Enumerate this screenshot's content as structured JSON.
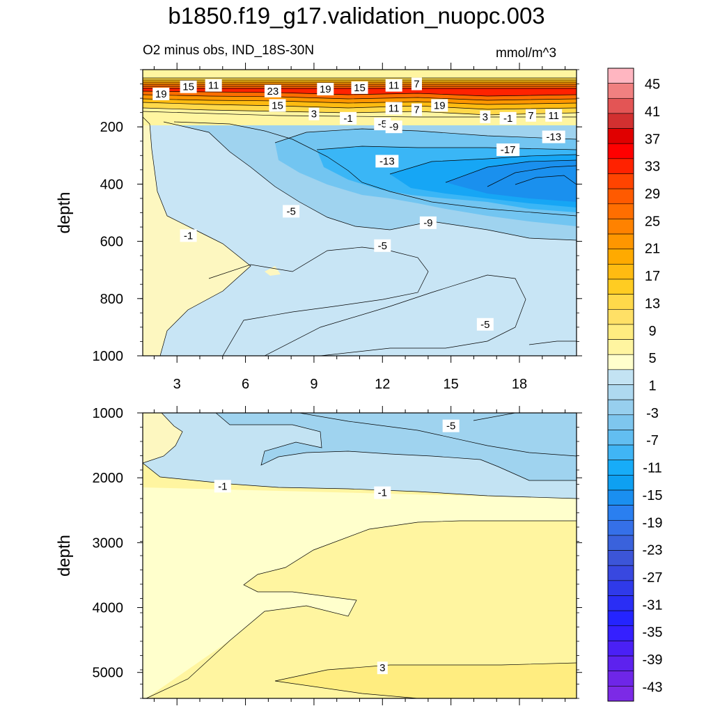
{
  "title": "b1850.f19_g17.validation_nuopc.003",
  "subtitle": "O2 minus obs, IND_18S-30N",
  "units": "mmol/m^3",
  "chart_data": [
    {
      "type": "heatmap",
      "panel": "upper",
      "ylabel": "depth",
      "xlabel": "",
      "xlim": [
        1.5,
        20.5
      ],
      "ylim": [
        1000,
        0
      ],
      "x_ticks": [
        "3",
        "6",
        "9",
        "12",
        "15",
        "18"
      ],
      "y_ticks": [
        "200",
        "400",
        "600",
        "800",
        "1000"
      ],
      "bands": [
        {
          "depth_range": [
            0,
            40
          ],
          "value": 5
        },
        {
          "depth_range": [
            40,
            130
          ],
          "value": 21
        },
        {
          "depth_range": [
            130,
            170
          ],
          "value": 9
        },
        {
          "depth_range": [
            170,
            1000
          ],
          "value": -3
        },
        {
          "x_range": [
            7,
            20.5
          ],
          "depth_range": [
            200,
            500
          ],
          "value": -7
        },
        {
          "x_range": [
            10,
            20.5
          ],
          "depth_range": [
            240,
            460
          ],
          "value": -11
        },
        {
          "x_range": [
            13,
            20.5
          ],
          "depth_range": [
            280,
            440
          ],
          "value": -15
        },
        {
          "x_range": [
            16,
            20.5
          ],
          "depth_range": [
            320,
            420
          ],
          "value": -19
        }
      ],
      "contour_labels": [
        {
          "x": 3.5,
          "depth": 60,
          "value": "15"
        },
        {
          "x": 4.6,
          "depth": 55,
          "value": "11"
        },
        {
          "x": 2.3,
          "depth": 85,
          "value": "19"
        },
        {
          "x": 7.2,
          "depth": 75,
          "value": "23"
        },
        {
          "x": 9.5,
          "depth": 68,
          "value": "19"
        },
        {
          "x": 11.0,
          "depth": 63,
          "value": "15"
        },
        {
          "x": 12.5,
          "depth": 55,
          "value": "11"
        },
        {
          "x": 13.5,
          "depth": 50,
          "value": "7"
        },
        {
          "x": 7.4,
          "depth": 125,
          "value": "15"
        },
        {
          "x": 12.5,
          "depth": 135,
          "value": "11"
        },
        {
          "x": 13.5,
          "depth": 140,
          "value": "7"
        },
        {
          "x": 14.5,
          "depth": 125,
          "value": "19"
        },
        {
          "x": 9.0,
          "depth": 155,
          "value": "3"
        },
        {
          "x": 10.5,
          "depth": 170,
          "value": "-1"
        },
        {
          "x": 12.0,
          "depth": 190,
          "value": "-5"
        },
        {
          "x": 12.5,
          "depth": 200,
          "value": "-9"
        },
        {
          "x": 12.2,
          "depth": 320,
          "value": "-13"
        },
        {
          "x": 16.5,
          "depth": 165,
          "value": "3"
        },
        {
          "x": 17.5,
          "depth": 170,
          "value": "-1"
        },
        {
          "x": 18.5,
          "depth": 160,
          "value": "7"
        },
        {
          "x": 19.5,
          "depth": 160,
          "value": "11"
        },
        {
          "x": 17.5,
          "depth": 280,
          "value": "-17"
        },
        {
          "x": 19.5,
          "depth": 235,
          "value": "-13"
        },
        {
          "x": 8.0,
          "depth": 495,
          "value": "-5"
        },
        {
          "x": 14.0,
          "depth": 535,
          "value": "-9"
        },
        {
          "x": 3.5,
          "depth": 580,
          "value": "-1"
        },
        {
          "x": 12.0,
          "depth": 615,
          "value": "-5"
        },
        {
          "x": 16.5,
          "depth": 890,
          "value": "-5"
        }
      ]
    },
    {
      "type": "heatmap",
      "panel": "lower",
      "ylabel": "depth",
      "xlabel": "",
      "xlim": [
        1.5,
        20.5
      ],
      "ylim": [
        5400,
        1000
      ],
      "x_ticks": [],
      "y_ticks": [
        "1000",
        "2000",
        "3000",
        "4000",
        "5000"
      ],
      "bands": [
        {
          "depth_range": [
            1000,
            2200
          ],
          "value": -3
        },
        {
          "x_range": [
            4,
            20.5
          ],
          "depth_range": [
            1000,
            1400
          ],
          "value": -7
        },
        {
          "depth_range": [
            2200,
            5400
          ],
          "value": 1
        },
        {
          "x_range": [
            9,
            20.5
          ],
          "depth_range": [
            2800,
            5400
          ],
          "value": 3
        },
        {
          "x_range": [
            12,
            20.5
          ],
          "depth_range": [
            4900,
            5400
          ],
          "value": 5
        }
      ],
      "contour_labels": [
        {
          "x": 15.0,
          "depth": 1200,
          "value": "-5"
        },
        {
          "x": 5.0,
          "depth": 2130,
          "value": "-1"
        },
        {
          "x": 12.0,
          "depth": 2230,
          "value": "-1"
        },
        {
          "x": 12.0,
          "depth": 4930,
          "value": "3"
        }
      ]
    },
    {
      "type": "colorbar",
      "levels": [
        "45",
        "41",
        "37",
        "33",
        "29",
        "25",
        "21",
        "17",
        "13",
        "9",
        "5",
        "1",
        "-3",
        "-7",
        "-11",
        "-15",
        "-19",
        "-23",
        "-27",
        "-31",
        "-35",
        "-39",
        "-43"
      ],
      "colors": [
        "#ffb6c1",
        "#f08080",
        "#e35555",
        "#d23030",
        "#e00000",
        "#ff0000",
        "#ff2200",
        "#ff4400",
        "#ff5a00",
        "#ff6e00",
        "#ff8200",
        "#ff9600",
        "#ffaa00",
        "#ffbb11",
        "#ffcc22",
        "#ffd94a",
        "#ffe066",
        "#ffec80",
        "#fff5a0",
        "#ffffcc",
        "#c3e3f3",
        "#aed9f0",
        "#97cfee",
        "#7ec6ee",
        "#62bef1",
        "#40b5f5",
        "#17acf8",
        "#0ea0f2",
        "#1a8ff0",
        "#2a7ff0",
        "#3570e8",
        "#3a62dc",
        "#3c55d8",
        "#3848e0",
        "#2f3aea",
        "#2a2ef5",
        "#2424ff",
        "#3520ff",
        "#4a20f5",
        "#5d22ee",
        "#6e26e8",
        "#7c2ae6"
      ]
    }
  ]
}
